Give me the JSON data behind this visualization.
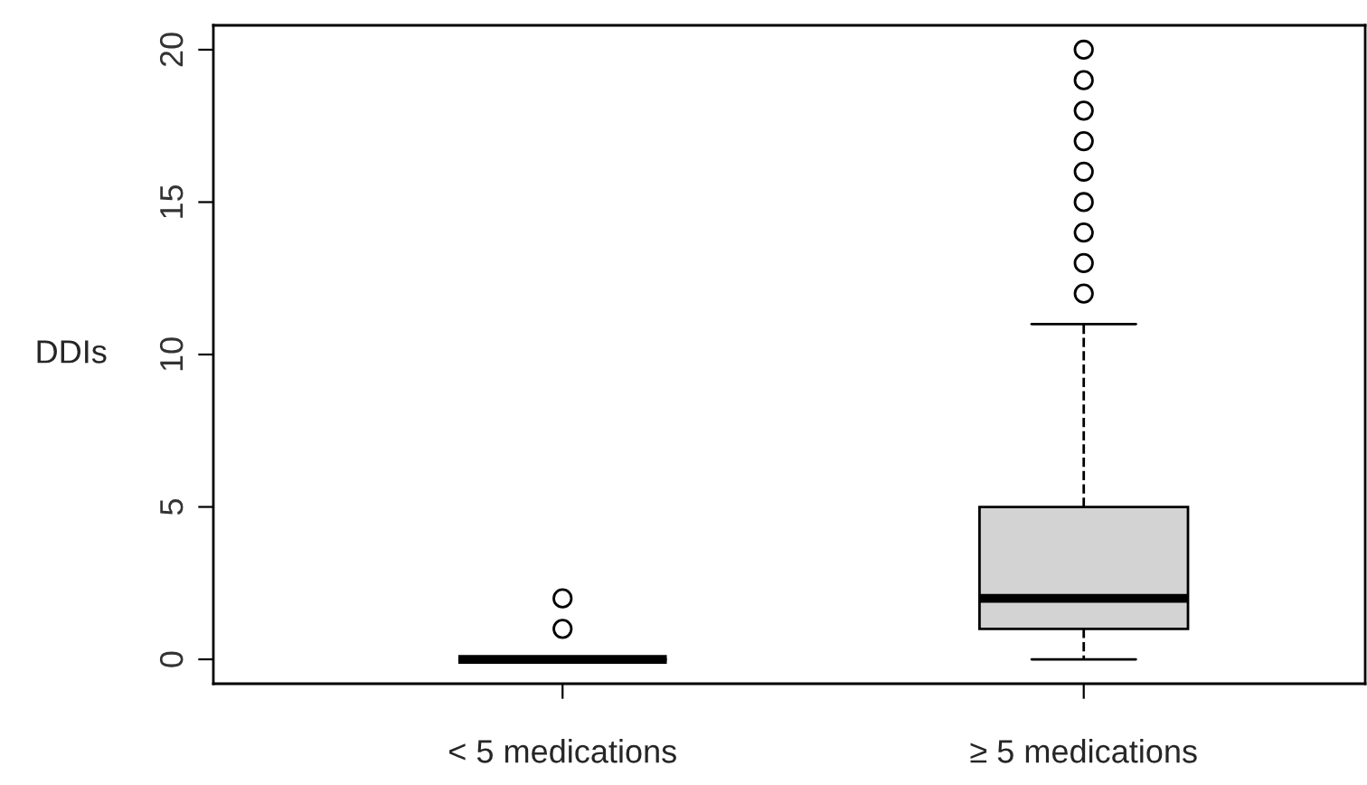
{
  "chart_data": {
    "type": "box",
    "ylabel": "DDIs",
    "categories": [
      "< 5 medications",
      "≥ 5 medications"
    ],
    "boxes": [
      {
        "low": 0,
        "q1": 0,
        "median": 0,
        "q3": 0,
        "high": 0,
        "outliers": [
          1,
          2
        ]
      },
      {
        "low": 0,
        "q1": 1,
        "median": 2,
        "q3": 5,
        "high": 11,
        "outliers": [
          12,
          13,
          14,
          15,
          16,
          17,
          18,
          19,
          20
        ]
      }
    ],
    "colors": [
      null,
      "#d3d3d3"
    ],
    "ylim": [
      -0.8,
      20.8
    ],
    "yticks": [
      0,
      5,
      10,
      15,
      20
    ],
    "grid": false
  }
}
